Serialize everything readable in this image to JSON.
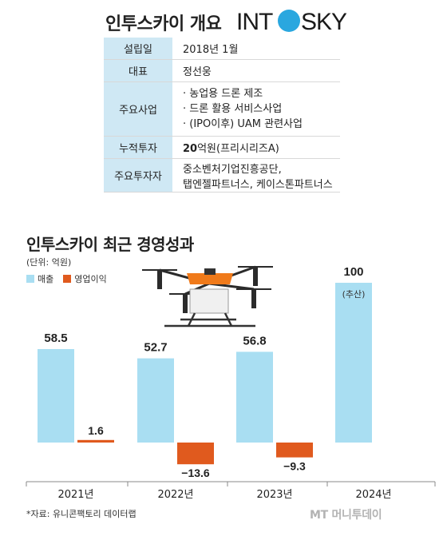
{
  "overview": {
    "title": "인투스카이 개요",
    "logo_text": "INTOSKY",
    "rows": [
      {
        "label": "설립일",
        "value": "2018년 1월"
      },
      {
        "label": "대표",
        "value": "정선웅"
      },
      {
        "label": "주요사업",
        "items": [
          "· 농업용 드론 제조",
          "· 드론 활용 서비스사업",
          "· (IPO이후) UAM 관련사업"
        ]
      },
      {
        "label": "누적투자",
        "value_bold": "20",
        "value_rest": "억원(프리시리즈A)"
      },
      {
        "label": "주요투자자",
        "lines": [
          "중소벤처기업진흥공단,",
          "탭엔젤파트너스, 케이스톤파트너스"
        ]
      }
    ]
  },
  "chart_data": {
    "type": "bar",
    "title": "인투스카이 최근 경영성과",
    "unit": "(단위: 억원)",
    "categories": [
      "2021년",
      "2022년",
      "2023년",
      "2024년"
    ],
    "series": [
      {
        "name": "매출",
        "color": "#a9def2",
        "values": [
          58.5,
          52.7,
          56.8,
          100
        ],
        "labels": [
          "58.5",
          "52.7",
          "56.8",
          "100"
        ]
      },
      {
        "name": "영업이익",
        "color": "#e05a1e",
        "values": [
          1.6,
          -13.6,
          -9.3,
          null
        ],
        "labels": [
          "1.6",
          "−13.6",
          "−9.3",
          ""
        ]
      }
    ],
    "annotations": [
      {
        "category": "2024년",
        "text": "(추산)"
      }
    ],
    "ylim": [
      -20,
      110
    ],
    "grid": false,
    "legend": "top-left"
  },
  "source": "*자료: 유니콘팩토리 데이터랩",
  "watermark": "MT 머니투데이"
}
